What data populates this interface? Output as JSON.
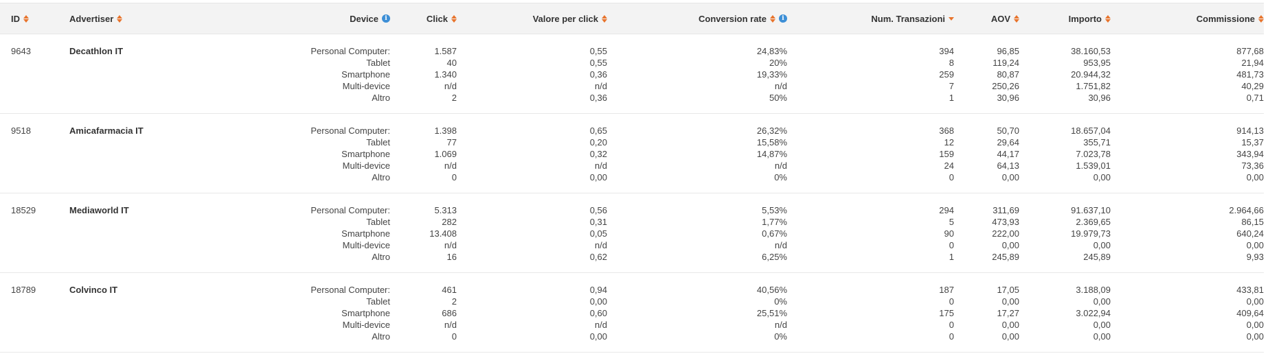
{
  "columns": {
    "id": "ID",
    "advertiser": "Advertiser",
    "device": "Device",
    "click": "Click",
    "valore_per_click": "Valore per click",
    "conversion_rate": "Conversion rate",
    "num_transazioni": "Num. Transazioni",
    "aov": "AOV",
    "importo": "Importo",
    "commissione": "Commissione"
  },
  "icons": {
    "sort": "sort-both-icon",
    "sort_desc": "sort-desc-icon",
    "info": "info-icon",
    "accent_color": "#e8742c",
    "info_color": "#3d8fd6"
  },
  "rows": [
    {
      "id": "9643",
      "advertiser": "Decathlon IT",
      "devices": [
        "Personal Computer:",
        "Tablet",
        "Smartphone",
        "Multi-device",
        "Altro"
      ],
      "click": [
        "1.587",
        "40",
        "1.340",
        "n/d",
        "2"
      ],
      "valore_per_click": [
        "0,55",
        "0,55",
        "0,36",
        "n/d",
        "0,36"
      ],
      "conversion_rate": [
        "24,83%",
        "20%",
        "19,33%",
        "n/d",
        "50%"
      ],
      "num_transazioni": [
        "394",
        "8",
        "259",
        "7",
        "1"
      ],
      "aov": [
        "96,85",
        "119,24",
        "80,87",
        "250,26",
        "30,96"
      ],
      "importo": [
        "38.160,53",
        "953,95",
        "20.944,32",
        "1.751,82",
        "30,96"
      ],
      "commissione": [
        "877,68",
        "21,94",
        "481,73",
        "40,29",
        "0,71"
      ]
    },
    {
      "id": "9518",
      "advertiser": "Amicafarmacia IT",
      "devices": [
        "Personal Computer:",
        "Tablet",
        "Smartphone",
        "Multi-device",
        "Altro"
      ],
      "click": [
        "1.398",
        "77",
        "1.069",
        "n/d",
        "0"
      ],
      "valore_per_click": [
        "0,65",
        "0,20",
        "0,32",
        "n/d",
        "0,00"
      ],
      "conversion_rate": [
        "26,32%",
        "15,58%",
        "14,87%",
        "n/d",
        "0%"
      ],
      "num_transazioni": [
        "368",
        "12",
        "159",
        "24",
        "0"
      ],
      "aov": [
        "50,70",
        "29,64",
        "44,17",
        "64,13",
        "0,00"
      ],
      "importo": [
        "18.657,04",
        "355,71",
        "7.023,78",
        "1.539,01",
        "0,00"
      ],
      "commissione": [
        "914,13",
        "15,37",
        "343,94",
        "73,36",
        "0,00"
      ]
    },
    {
      "id": "18529",
      "advertiser": "Mediaworld IT",
      "devices": [
        "Personal Computer:",
        "Tablet",
        "Smartphone",
        "Multi-device",
        "Altro"
      ],
      "click": [
        "5.313",
        "282",
        "13.408",
        "n/d",
        "16"
      ],
      "valore_per_click": [
        "0,56",
        "0,31",
        "0,05",
        "n/d",
        "0,62"
      ],
      "conversion_rate": [
        "5,53%",
        "1,77%",
        "0,67%",
        "n/d",
        "6,25%"
      ],
      "num_transazioni": [
        "294",
        "5",
        "90",
        "0",
        "1"
      ],
      "aov": [
        "311,69",
        "473,93",
        "222,00",
        "0,00",
        "245,89"
      ],
      "importo": [
        "91.637,10",
        "2.369,65",
        "19.979,73",
        "0,00",
        "245,89"
      ],
      "commissione": [
        "2.964,66",
        "86,15",
        "640,24",
        "0,00",
        "9,93"
      ]
    },
    {
      "id": "18789",
      "advertiser": "Colvinco IT",
      "devices": [
        "Personal Computer:",
        "Tablet",
        "Smartphone",
        "Multi-device",
        "Altro"
      ],
      "click": [
        "461",
        "2",
        "686",
        "n/d",
        "0"
      ],
      "valore_per_click": [
        "0,94",
        "0,00",
        "0,60",
        "n/d",
        "0,00"
      ],
      "conversion_rate": [
        "40,56%",
        "0%",
        "25,51%",
        "n/d",
        "0%"
      ],
      "num_transazioni": [
        "187",
        "0",
        "175",
        "0",
        "0"
      ],
      "aov": [
        "17,05",
        "0,00",
        "17,27",
        "0,00",
        "0,00"
      ],
      "importo": [
        "3.188,09",
        "0,00",
        "3.022,94",
        "0,00",
        "0,00"
      ],
      "commissione": [
        "433,81",
        "0,00",
        "409,64",
        "0,00",
        "0,00"
      ]
    }
  ]
}
